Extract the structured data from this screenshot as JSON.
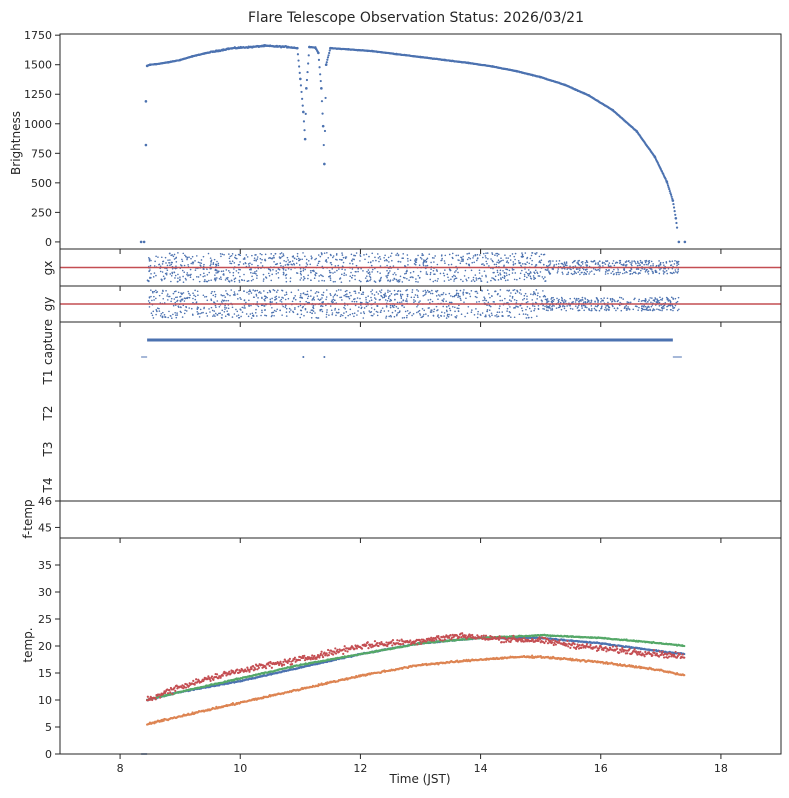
{
  "title": "Flare Telescope Observation Status: 2026/03/21",
  "colors": {
    "blue": "#4c72b0",
    "orange": "#dd8452",
    "green": "#55a868",
    "red": "#c44e52",
    "axis": "#262626"
  },
  "chart_data": [
    {
      "id": "brightness",
      "type": "scatter",
      "ylabel": "Brightness",
      "xlim": [
        7,
        19
      ],
      "ylim": [
        -60,
        1760
      ],
      "yticks": [
        0,
        250,
        500,
        750,
        1000,
        1250,
        1500,
        1750
      ],
      "series": [
        {
          "color": "#4c72b0",
          "points": [
            [
              8.35,
              0
            ],
            [
              8.4,
              0
            ],
            [
              8.43,
              820
            ],
            [
              8.43,
              1190
            ],
            [
              8.45,
              1490
            ],
            [
              8.5,
              1500
            ],
            [
              8.6,
              1505
            ],
            [
              8.8,
              1520
            ],
            [
              9.0,
              1540
            ],
            [
              9.2,
              1570
            ],
            [
              9.4,
              1595
            ],
            [
              9.6,
              1615
            ],
            [
              9.8,
              1635
            ],
            [
              10.0,
              1645
            ],
            [
              10.2,
              1650
            ],
            [
              10.4,
              1660
            ],
            [
              10.6,
              1655
            ],
            [
              10.8,
              1650
            ],
            [
              10.95,
              1640
            ],
            [
              11.0,
              1380
            ],
            [
              11.05,
              1100
            ],
            [
              11.08,
              870
            ],
            [
              11.1,
              1300
            ],
            [
              11.15,
              1650
            ],
            [
              11.25,
              1645
            ],
            [
              11.3,
              1600
            ],
            [
              11.35,
              1300
            ],
            [
              11.38,
              980
            ],
            [
              11.4,
              660
            ],
            [
              11.43,
              1500
            ],
            [
              11.5,
              1640
            ],
            [
              11.8,
              1630
            ],
            [
              12.2,
              1615
            ],
            [
              12.6,
              1590
            ],
            [
              13.0,
              1565
            ],
            [
              13.4,
              1540
            ],
            [
              13.8,
              1515
            ],
            [
              14.2,
              1485
            ],
            [
              14.6,
              1445
            ],
            [
              15.0,
              1395
            ],
            [
              15.4,
              1330
            ],
            [
              15.8,
              1240
            ],
            [
              16.2,
              1115
            ],
            [
              16.6,
              935
            ],
            [
              16.9,
              720
            ],
            [
              17.1,
              510
            ],
            [
              17.2,
              350
            ],
            [
              17.25,
              200
            ],
            [
              17.3,
              0
            ],
            [
              17.4,
              0
            ]
          ]
        }
      ]
    },
    {
      "id": "gx",
      "type": "scatter",
      "ylabel": "gx",
      "xlim": [
        7,
        19
      ],
      "reference_line": {
        "color": "#c44e52"
      },
      "series": [
        {
          "color": "#4c72b0",
          "start": 8.45,
          "end": 17.3
        }
      ]
    },
    {
      "id": "gy",
      "type": "scatter",
      "ylabel": "gy",
      "xlim": [
        7,
        19
      ],
      "reference_line": {
        "color": "#c44e52"
      },
      "series": [
        {
          "color": "#4c72b0",
          "start": 8.45,
          "end": 17.3
        }
      ]
    },
    {
      "id": "status",
      "type": "line",
      "ylabels": [
        "capture",
        "T1",
        "T2",
        "T3",
        "T4"
      ],
      "xlim": [
        7,
        19
      ],
      "series": [
        {
          "name": "capture",
          "color": "#4c72b0",
          "start": 8.45,
          "end": 17.2
        }
      ]
    },
    {
      "id": "ftemp",
      "type": "scatter",
      "ylabel": "f-temp",
      "xlim": [
        7,
        19
      ],
      "ylim": [
        44.6,
        46
      ],
      "yticks": [
        45,
        46
      ]
    },
    {
      "id": "temp",
      "type": "scatter",
      "ylabel": "temp.",
      "xlabel": "Time (JST)",
      "xlim": [
        7,
        19
      ],
      "ylim": [
        0,
        40
      ],
      "xticks": [
        8,
        10,
        12,
        14,
        16,
        18
      ],
      "yticks": [
        0,
        5,
        10,
        15,
        20,
        25,
        30,
        35
      ],
      "series": [
        {
          "color": "#4c72b0",
          "points": [
            [
              8.45,
              10
            ],
            [
              9,
              11.5
            ],
            [
              10,
              13.5
            ],
            [
              11,
              16
            ],
            [
              12,
              18.5
            ],
            [
              13,
              20.5
            ],
            [
              14,
              21.5
            ],
            [
              15,
              21.5
            ],
            [
              16,
              20.5
            ],
            [
              17,
              19
            ],
            [
              17.4,
              18.5
            ]
          ]
        },
        {
          "color": "#dd8452",
          "points": [
            [
              8.45,
              5.5
            ],
            [
              9,
              7
            ],
            [
              10,
              9.5
            ],
            [
              11,
              12
            ],
            [
              12,
              14.5
            ],
            [
              13,
              16.5
            ],
            [
              14,
              17.5
            ],
            [
              14.7,
              18
            ],
            [
              15,
              18
            ],
            [
              16,
              17
            ],
            [
              17,
              15.5
            ],
            [
              17.4,
              14.5
            ]
          ]
        },
        {
          "color": "#55a868",
          "points": [
            [
              8.45,
              10
            ],
            [
              9,
              11.5
            ],
            [
              10,
              14
            ],
            [
              11,
              16.5
            ],
            [
              12,
              18.5
            ],
            [
              13,
              20.5
            ],
            [
              14,
              21.5
            ],
            [
              15,
              22
            ],
            [
              16,
              21.5
            ],
            [
              17,
              20.5
            ],
            [
              17.4,
              20
            ]
          ]
        },
        {
          "color": "#c44e52",
          "points": [
            [
              8.45,
              10
            ],
            [
              9,
              12.5
            ],
            [
              10,
              15.5
            ],
            [
              11,
              17.5
            ],
            [
              12,
              20
            ],
            [
              13,
              21
            ],
            [
              13.7,
              22
            ],
            [
              14,
              21.5
            ],
            [
              15,
              21
            ],
            [
              16,
              19.5
            ],
            [
              17,
              18.5
            ],
            [
              17.4,
              18
            ]
          ]
        }
      ]
    }
  ]
}
